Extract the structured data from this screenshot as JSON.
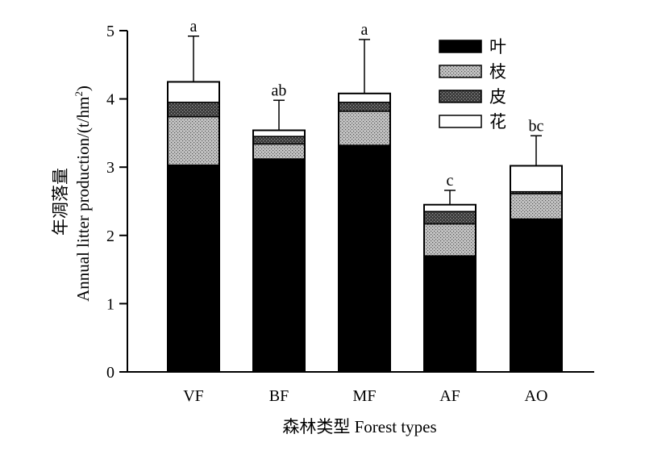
{
  "chart_data": {
    "type": "bar",
    "stacked": true,
    "categories": [
      "VF",
      "BF",
      "MF",
      "AF",
      "AO"
    ],
    "series": [
      {
        "name": "叶",
        "values": [
          3.03,
          3.12,
          3.32,
          1.7,
          2.24
        ],
        "color": "#000000",
        "pattern": "solid"
      },
      {
        "name": "枝",
        "values": [
          0.71,
          0.22,
          0.5,
          0.47,
          0.37
        ],
        "color": "#b8b8b8",
        "pattern": "dots"
      },
      {
        "name": "皮",
        "values": [
          0.21,
          0.11,
          0.13,
          0.18,
          0.03
        ],
        "color": "#555555",
        "pattern": "dark-dots"
      },
      {
        "name": "花",
        "values": [
          0.3,
          0.09,
          0.13,
          0.1,
          0.38
        ],
        "color": "#ffffff",
        "pattern": "solid"
      }
    ],
    "error_top": [
      4.92,
      3.98,
      4.87,
      2.66,
      3.46
    ],
    "significance": [
      "a",
      "ab",
      "a",
      "c",
      "bc"
    ],
    "xlabel": "森林类型 Forest types",
    "ylabel_cn": "年凋落量",
    "ylabel_en": "Annual litter production/(t/hm",
    "ylabel_sup": "2",
    "ylabel_end": ")",
    "ylim": [
      0,
      5
    ],
    "yticks": [
      0,
      1,
      2,
      3,
      4,
      5
    ],
    "grid": false,
    "legend_position": "top-right"
  }
}
